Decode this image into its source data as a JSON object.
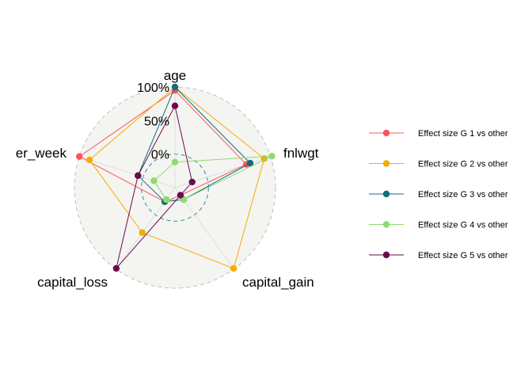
{
  "chart_data": {
    "type": "radar",
    "axes": [
      "age",
      "fnlwgt",
      "capital_gain",
      "capital_loss",
      "hours_per_week"
    ],
    "axis_labels_visible": [
      "age",
      "fnlwgt",
      "capital_gain",
      "capital_loss",
      "er_week"
    ],
    "rlim": [
      -50,
      100
    ],
    "ticks": [
      {
        "value": 0,
        "label": "0%"
      },
      {
        "value": 50,
        "label": "50%"
      },
      {
        "value": 100,
        "label": "100%"
      }
    ],
    "grid": true,
    "legend_position": "right",
    "series": [
      {
        "name": "Effect size G 1 vs other",
        "color": "#F8555F",
        "values": [
          95,
          62,
          -36,
          -24,
          100
        ]
      },
      {
        "name": "Effect size G 2 vs other",
        "color": "#F5AC03",
        "values": [
          100,
          90,
          99,
          33,
          84
        ]
      },
      {
        "name": "Effect size G 3 vs other",
        "color": "#0E6F7E",
        "values": [
          100,
          68,
          -28,
          -24,
          8
        ]
      },
      {
        "name": "Effect size G 4 vs other",
        "color": "#8EDB6E",
        "values": [
          -12,
          102,
          -28,
          -28,
          -17
        ]
      },
      {
        "name": "Effect size G 5 vs other",
        "color": "#6B0A4F",
        "values": [
          72,
          -23,
          -36,
          99,
          8
        ]
      }
    ]
  }
}
